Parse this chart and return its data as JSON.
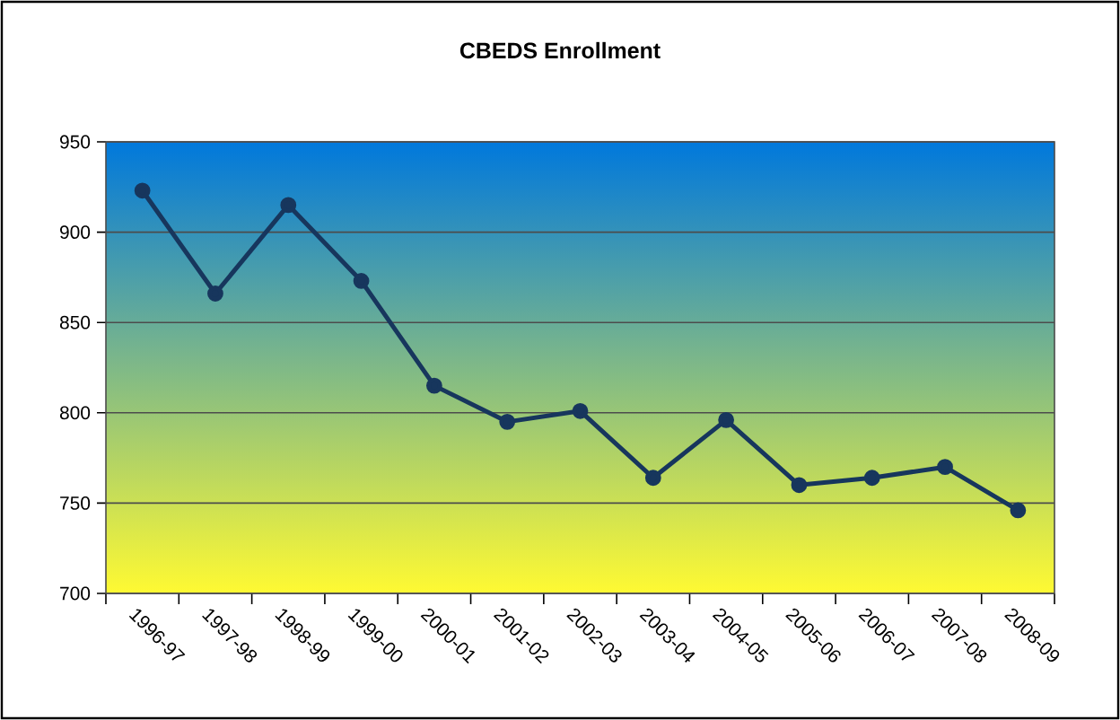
{
  "chart_data": {
    "type": "line",
    "title": "CBEDS Enrollment",
    "categories": [
      "1996-97",
      "1997-98",
      "1998-99",
      "1999-00",
      "2000-01",
      "2001-02",
      "2002-03",
      "2003-04",
      "2004-05",
      "2005-06",
      "2006-07",
      "2007-08",
      "2008-09"
    ],
    "series": [
      {
        "color": "#17365d",
        "values": [
          923,
          866,
          915,
          873,
          815,
          795,
          801,
          764,
          796,
          760,
          764,
          770,
          746
        ]
      }
    ],
    "ylim": [
      700,
      950
    ],
    "yticks": [
      700,
      750,
      800,
      850,
      900,
      950
    ],
    "grid": "y",
    "marker": "circle",
    "line_style": "solid"
  }
}
